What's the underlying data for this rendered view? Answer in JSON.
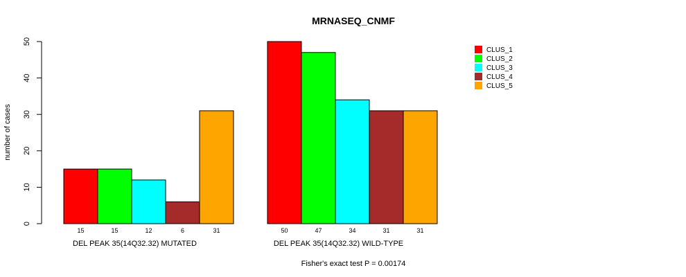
{
  "chart_data": {
    "type": "bar",
    "title": "MRNASEQ_CNMF",
    "ylabel": "number of cases",
    "ylim": [
      0,
      50
    ],
    "yticks": [
      0,
      10,
      20,
      30,
      40,
      50
    ],
    "groups": [
      "DEL PEAK 35(14Q32.32) MUTATED",
      "DEL PEAK 35(14Q32.32) WILD-TYPE"
    ],
    "series": [
      {
        "name": "CLUS_1",
        "color": "#ff0000",
        "values": [
          15,
          50
        ]
      },
      {
        "name": "CLUS_2",
        "color": "#00ff00",
        "values": [
          15,
          47
        ]
      },
      {
        "name": "CLUS_3",
        "color": "#00ffff",
        "values": [
          12,
          34
        ]
      },
      {
        "name": "CLUS_4",
        "color": "#a52a2a",
        "values": [
          6,
          31
        ]
      },
      {
        "name": "CLUS_5",
        "color": "#ffa500",
        "values": [
          31,
          31
        ]
      }
    ],
    "legend_position": "top-right",
    "grid": false,
    "footnote": "Fisher's exact test P = 0.00174"
  }
}
